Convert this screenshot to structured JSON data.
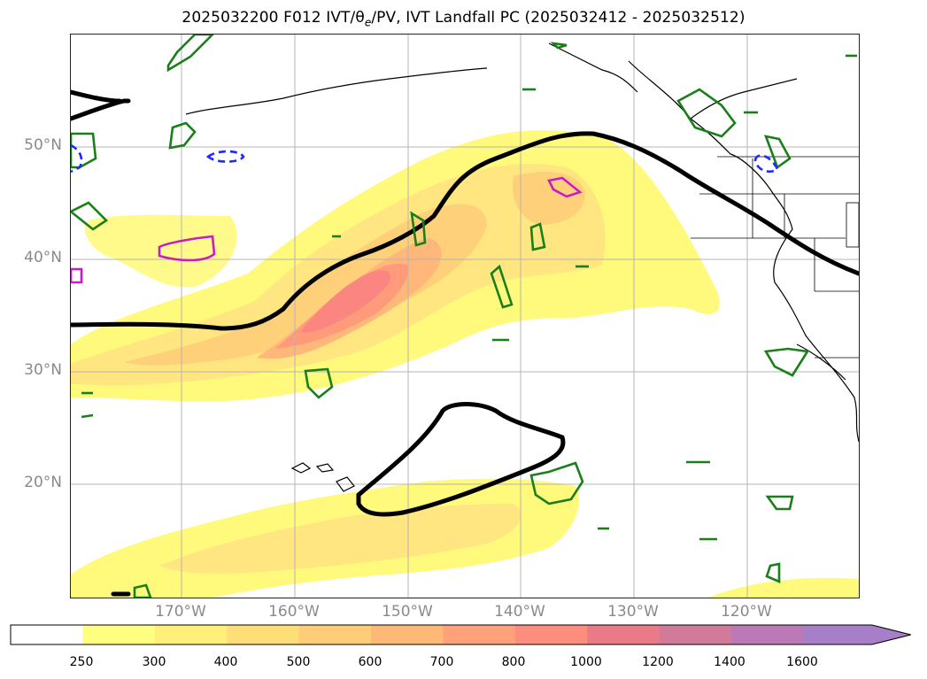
{
  "title": {
    "prefix": "2025032200 F012 IVT/",
    "theta": "θ",
    "sub": "e",
    "suffix": "/PV, IVT Landfall PC (2025032412 - 2025032512)"
  },
  "map": {
    "lat_labels": [
      "50°N",
      "40°N",
      "30°N",
      "20°N"
    ],
    "lon_labels": [
      "170°W",
      "160°W",
      "150°W",
      "140°W",
      "130°W",
      "120°W"
    ],
    "gridlines": true
  },
  "colorbar": {
    "ticks": [
      "250",
      "300",
      "400",
      "500",
      "600",
      "700",
      "800",
      "1000",
      "1200",
      "1400",
      "1600"
    ],
    "colors": [
      "#ffffff",
      "#ffff80",
      "#fff07a",
      "#ffde78",
      "#ffcc77",
      "#ffb977",
      "#ffa27a",
      "#fd8d7d",
      "#ea7a88",
      "#d27a9a",
      "#bb7ab5",
      "#a67fc8"
    ],
    "extend": "max"
  },
  "contours": {
    "ivt_colors": [
      "#fff97c",
      "#ffe680",
      "#ffd07a",
      "#ffb87a",
      "#ff9b7a",
      "#fb8581"
    ],
    "pc_color": "#000000",
    "theta_color": "#1a7f1a",
    "pv_color": "#c81cc8",
    "neg_color": "#1c2aff"
  }
}
